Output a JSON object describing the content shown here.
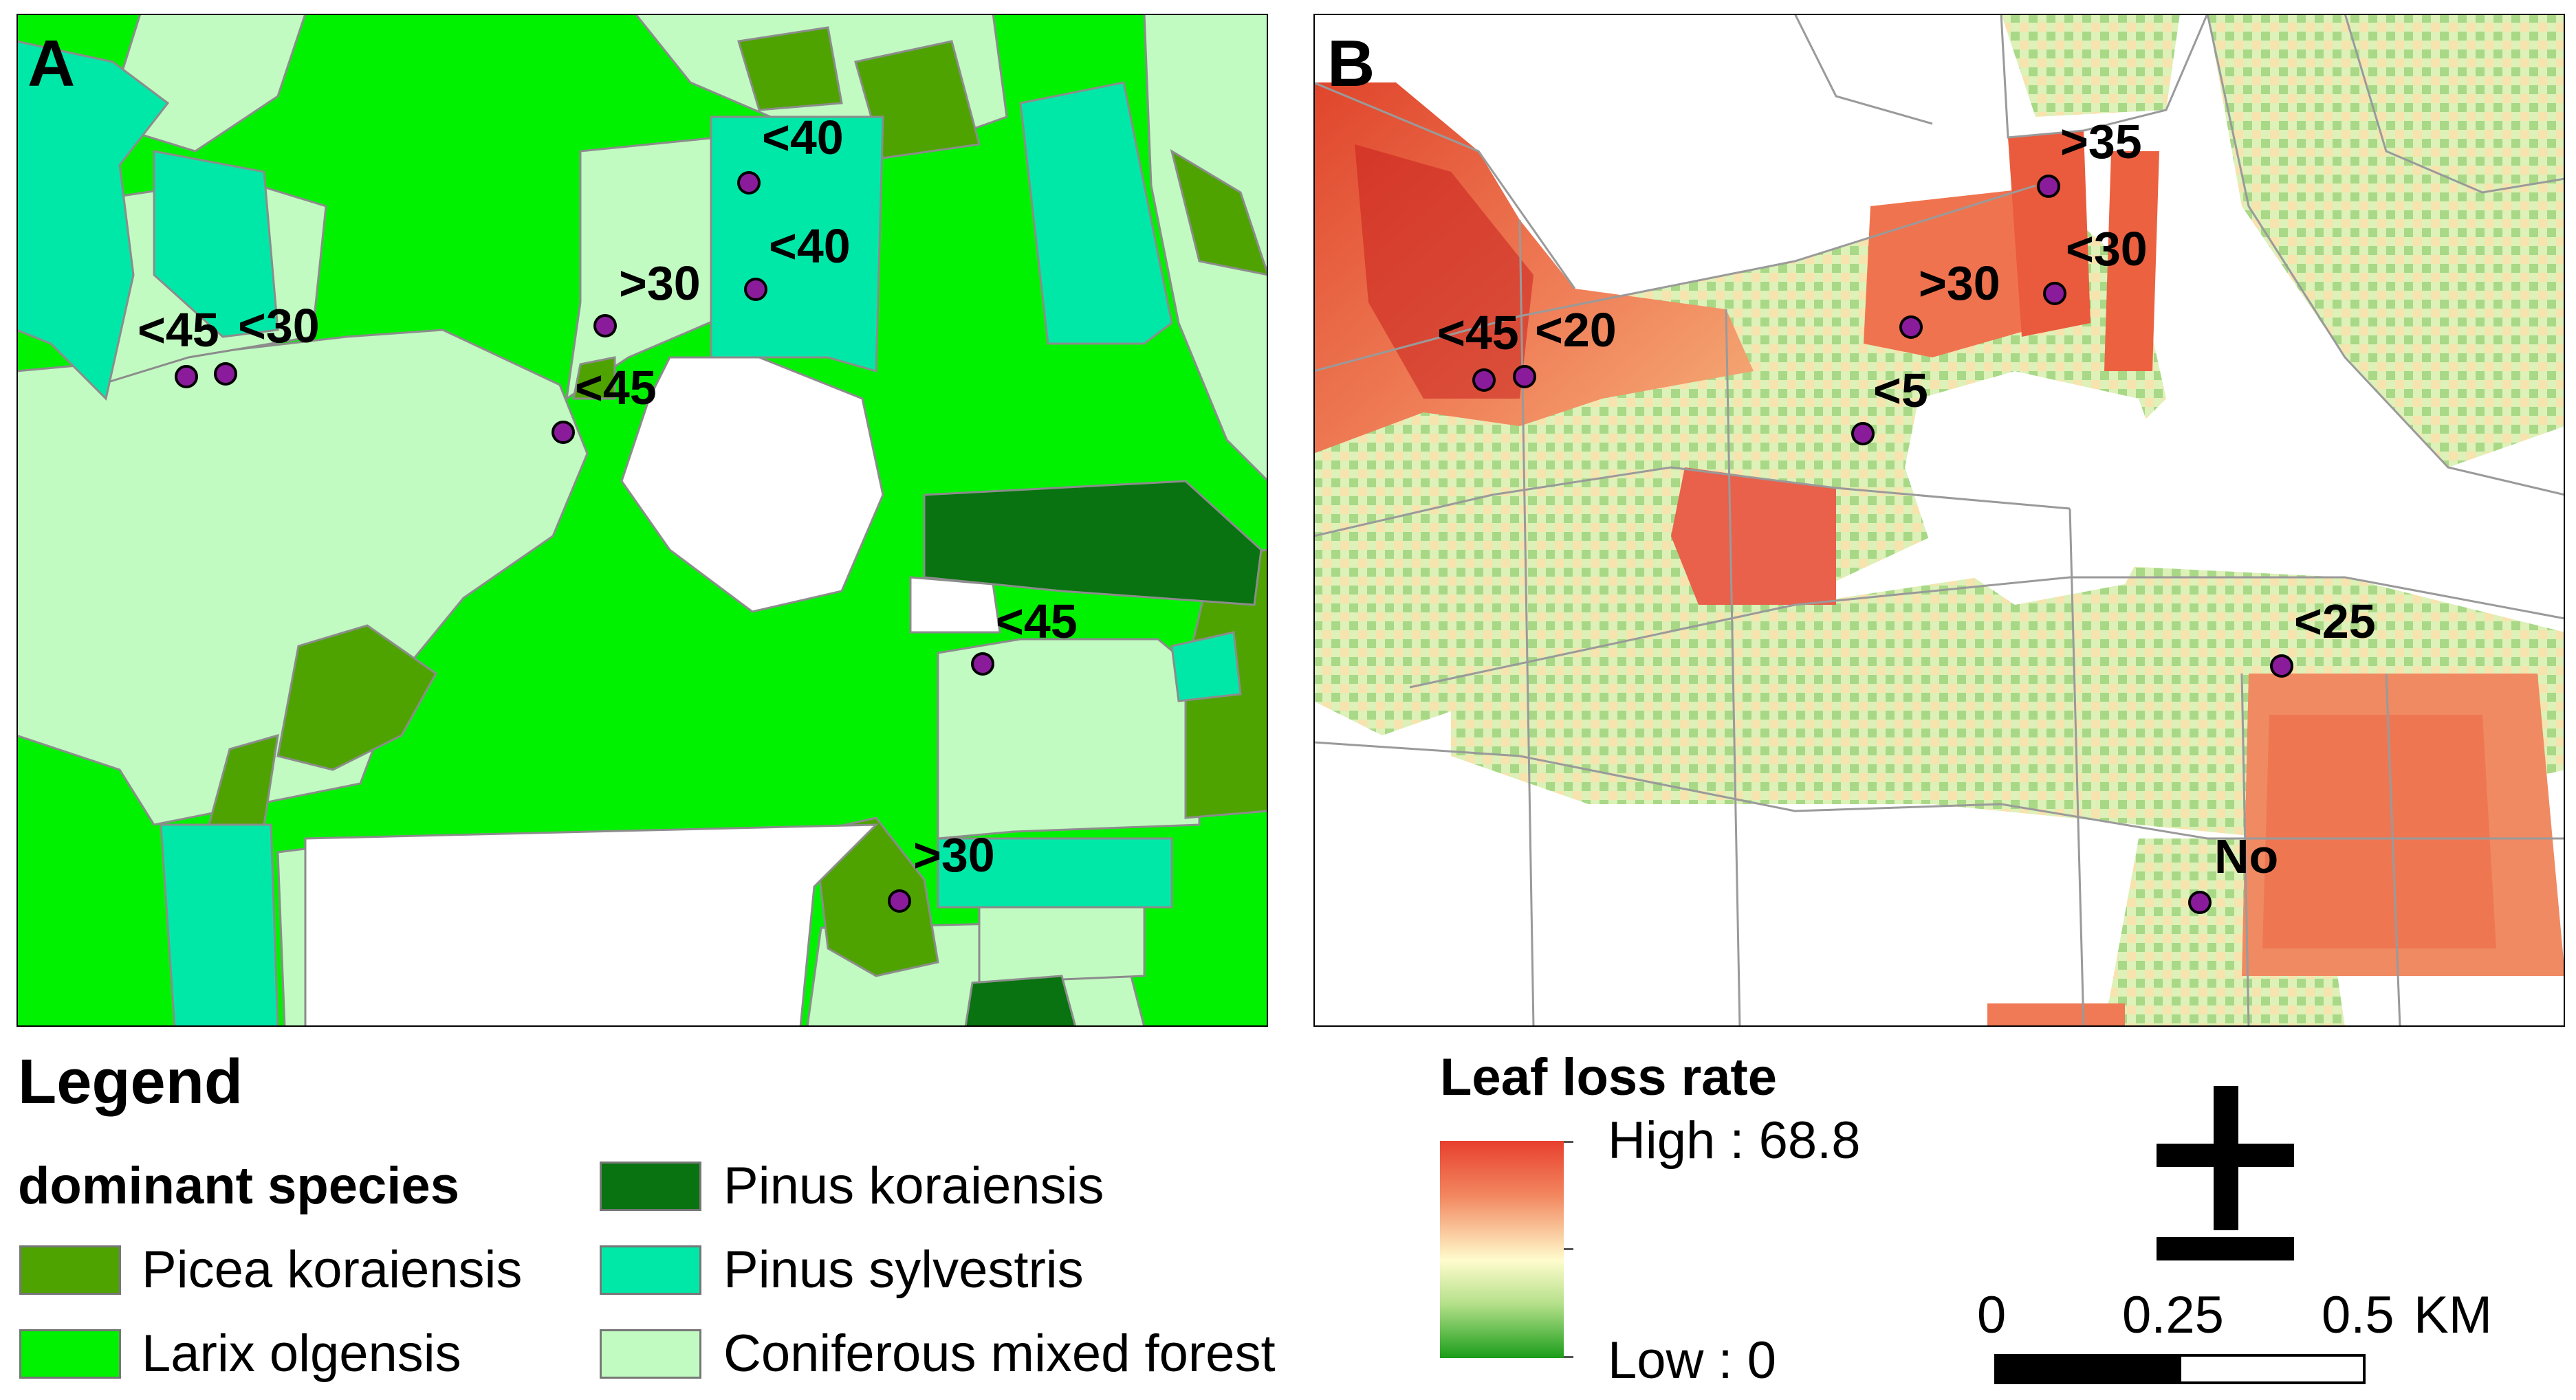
{
  "panel_a": {
    "label": "A",
    "markers": [
      {
        "id": "a1",
        "label": "<45"
      },
      {
        "id": "a2",
        "label": "<30"
      },
      {
        "id": "a3",
        "label": "<40"
      },
      {
        "id": "a4",
        "label": "<40"
      },
      {
        "id": "a5",
        "label": ">30"
      },
      {
        "id": "a6",
        "label": "<45"
      },
      {
        "id": "a7",
        "label": "<45"
      },
      {
        "id": "a8",
        "label": ">30"
      }
    ]
  },
  "panel_b": {
    "label": "B",
    "markers": [
      {
        "id": "b1",
        "label": "<45"
      },
      {
        "id": "b2",
        "label": "<20"
      },
      {
        "id": "b3",
        "label": ">35"
      },
      {
        "id": "b4",
        "label": ">30"
      },
      {
        "id": "b5",
        "label": "<30"
      },
      {
        "id": "b6",
        "label": "<5"
      },
      {
        "id": "b7",
        "label": "<25"
      },
      {
        "id": "b8",
        "label": "No"
      }
    ]
  },
  "legend": {
    "title": "Legend",
    "subtitle": "dominant species",
    "items": [
      {
        "label": "Picea koraiensis",
        "color": "#4fa300"
      },
      {
        "label": "Larix olgensis",
        "color": "#00f200"
      },
      {
        "label": "Pinus koraiensis",
        "color": "#087310"
      },
      {
        "label": "Pinus sylvestris",
        "color": "#00e8a8"
      },
      {
        "label": "Coniferous mixed forest",
        "color": "#c2fbc2"
      }
    ]
  },
  "leaf_loss": {
    "title": "Leaf loss rate",
    "high_label": "High : 68.8",
    "low_label": "Low : 0",
    "high_color": "#e8402e",
    "mid_color": "#fffccd",
    "low_color": "#1a9d1a"
  },
  "scale_bar": {
    "ticks": [
      "0",
      "0.25",
      "0.5"
    ],
    "unit": "KM"
  },
  "north_arrow": {
    "icon": "north-arrow-icon"
  }
}
